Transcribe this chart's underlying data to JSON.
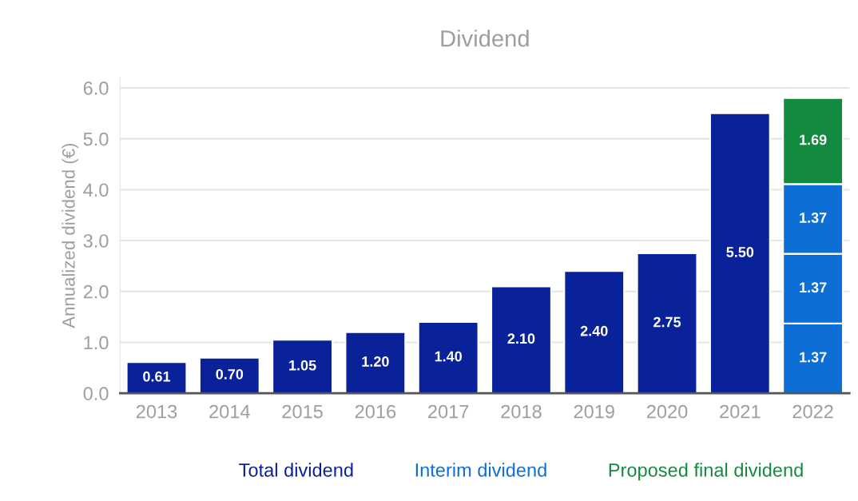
{
  "chart_data": {
    "type": "bar",
    "title": "Dividend",
    "ylabel": "Annualized dividend (€)",
    "categories": [
      "2013",
      "2014",
      "2015",
      "2016",
      "2017",
      "2018",
      "2019",
      "2020",
      "2021",
      "2022"
    ],
    "stacked": true,
    "series": [
      {
        "name": "Total dividend",
        "color": "#0a2299",
        "values": [
          0.61,
          0.7,
          1.05,
          1.2,
          1.4,
          2.1,
          2.4,
          2.75,
          5.5,
          null
        ],
        "value_labels": [
          "0.61",
          "0.70",
          "1.05",
          "1.20",
          "1.40",
          "2.10",
          "2.40",
          "2.75",
          "5.50",
          null
        ]
      },
      {
        "name": "Interim dividend",
        "color": "#0d6fd6",
        "values": [
          null,
          null,
          null,
          null,
          null,
          null,
          null,
          null,
          null,
          1.37
        ],
        "value_labels": [
          null,
          null,
          null,
          null,
          null,
          null,
          null,
          null,
          null,
          "1.37"
        ]
      },
      {
        "color": "#0d6fd6",
        "values": [
          null,
          null,
          null,
          null,
          null,
          null,
          null,
          null,
          null,
          1.37
        ],
        "value_labels": [
          null,
          null,
          null,
          null,
          null,
          null,
          null,
          null,
          null,
          "1.37"
        ]
      },
      {
        "color": "#0d6fd6",
        "values": [
          null,
          null,
          null,
          null,
          null,
          null,
          null,
          null,
          null,
          1.37
        ],
        "value_labels": [
          null,
          null,
          null,
          null,
          null,
          null,
          null,
          null,
          null,
          "1.37"
        ]
      },
      {
        "name": "Proposed final dividend",
        "color": "#138a3e",
        "values": [
          null,
          null,
          null,
          null,
          null,
          null,
          null,
          null,
          null,
          1.69
        ],
        "value_labels": [
          null,
          null,
          null,
          null,
          null,
          null,
          null,
          null,
          null,
          "1.69"
        ]
      }
    ],
    "ylim": [
      0,
      6.2
    ],
    "yticks": [
      {
        "value": 0,
        "label": "0.0"
      },
      {
        "value": 1,
        "label": "1.0"
      },
      {
        "value": 2,
        "label": "2.0"
      },
      {
        "value": 3,
        "label": "3.0"
      },
      {
        "value": 4,
        "label": "4.0"
      },
      {
        "value": 5,
        "label": "5.0"
      },
      {
        "value": 6,
        "label": "6.0"
      }
    ],
    "grid": "y",
    "legend": "bottom"
  }
}
